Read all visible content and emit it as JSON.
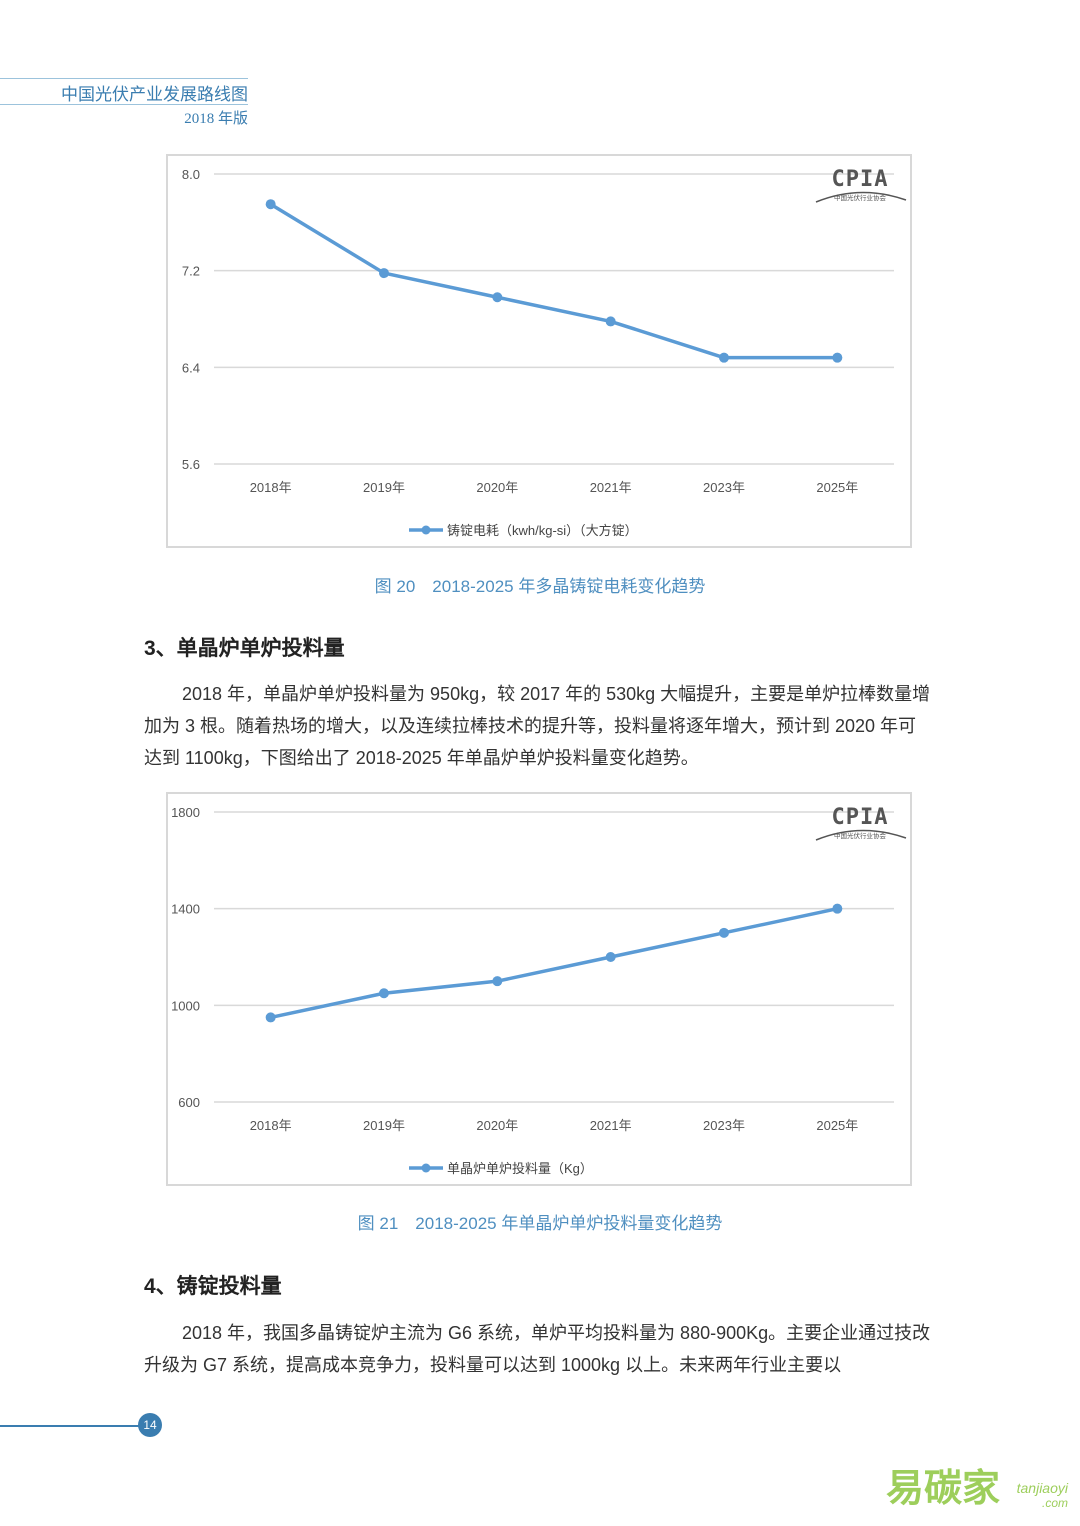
{
  "header": {
    "title": "中国光伏产业发展路线图",
    "edition": "2018 年版"
  },
  "charts_logo": {
    "mark": "CPIA",
    "sub": "中国光伏行业协会"
  },
  "chart_data": [
    {
      "type": "line",
      "categories": [
        "2018年",
        "2019年",
        "2020年",
        "2021年",
        "2023年",
        "2025年"
      ],
      "series": [
        {
          "name": "铸锭电耗（kwh/kg-si）（大方锭）",
          "values": [
            7.75,
            7.18,
            6.98,
            6.78,
            6.48,
            6.48
          ],
          "color": "#5b9bd5"
        }
      ],
      "yticks": [
        "8.0",
        "7.2",
        "6.4",
        "5.6"
      ],
      "ylim": [
        5.6,
        8.0
      ],
      "grid": true,
      "legend": "bottom"
    },
    {
      "type": "line",
      "categories": [
        "2018年",
        "2019年",
        "2020年",
        "2021年",
        "2023年",
        "2025年"
      ],
      "series": [
        {
          "name": "单晶炉单炉投料量（Kg）",
          "values": [
            950,
            1050,
            1100,
            1200,
            1300,
            1400
          ],
          "color": "#5b9bd5"
        }
      ],
      "yticks": [
        "1800",
        "1400",
        "1000",
        "600"
      ],
      "ylim": [
        600,
        1800
      ],
      "grid": true,
      "legend": "bottom"
    }
  ],
  "captions": {
    "fig20": "图 20　2018-2025 年多晶铸锭电耗变化趋势",
    "fig21": "图 21　2018-2025 年单晶炉单炉投料量变化趋势"
  },
  "sections": {
    "s3_title": "3、单晶炉单炉投料量",
    "s3_para": "2018 年，单晶炉单炉投料量为 950kg，较 2017 年的 530kg 大幅提升，主要是单炉拉棒数量增加为 3 根。随着热场的增大，以及连续拉棒技术的提升等，投料量将逐年增大，预计到 2020 年可达到 1100kg，下图给出了 2018-2025 年单晶炉单炉投料量变化趋势。",
    "s4_title": "4、铸锭投料量",
    "s4_para": "2018 年，我国多晶铸锭炉主流为 G6 系统，单炉平均投料量为 880-900Kg。主要企业通过技改升级为 G7 系统，提高成本竞争力，投料量可以达到 1000kg 以上。未来两年行业主要以"
  },
  "footer": {
    "page": "14"
  },
  "watermark": {
    "brand": "易碳家",
    "domain": "tanjiaoyi",
    "tld": ".com"
  }
}
